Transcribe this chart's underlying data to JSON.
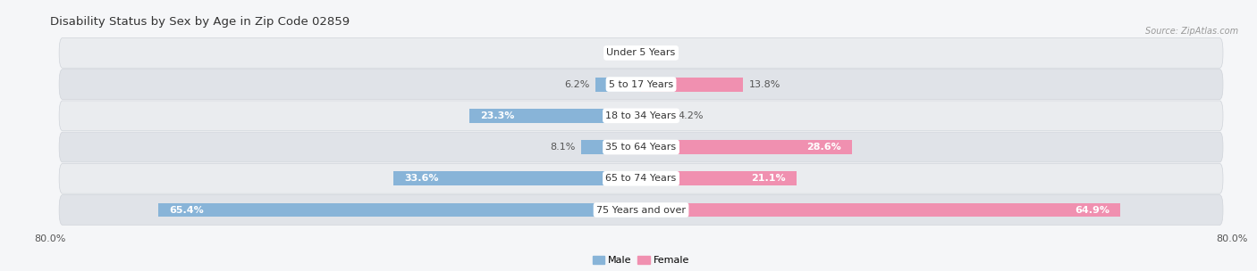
{
  "title": "Disability Status by Sex by Age in Zip Code 02859",
  "source": "Source: ZipAtlas.com",
  "categories": [
    "Under 5 Years",
    "5 to 17 Years",
    "18 to 34 Years",
    "35 to 64 Years",
    "65 to 74 Years",
    "75 Years and over"
  ],
  "male_values": [
    0.0,
    6.2,
    23.3,
    8.1,
    33.6,
    65.4
  ],
  "female_values": [
    0.0,
    13.8,
    4.2,
    28.6,
    21.1,
    64.9
  ],
  "male_color": "#88b4d8",
  "female_color": "#f090b0",
  "male_label": "Male",
  "female_label": "Female",
  "xlim": 80.0,
  "row_colors": [
    "#eaecef",
    "#e0e3e8",
    "#eaecef",
    "#e0e3e8",
    "#eaecef",
    "#e0e3e8"
  ],
  "row_divider_color": "#d0d4da",
  "background_color": "#f5f6f8",
  "title_fontsize": 9.5,
  "label_fontsize": 8,
  "cat_fontsize": 8,
  "bar_height": 0.45,
  "inside_label_threshold": 15
}
